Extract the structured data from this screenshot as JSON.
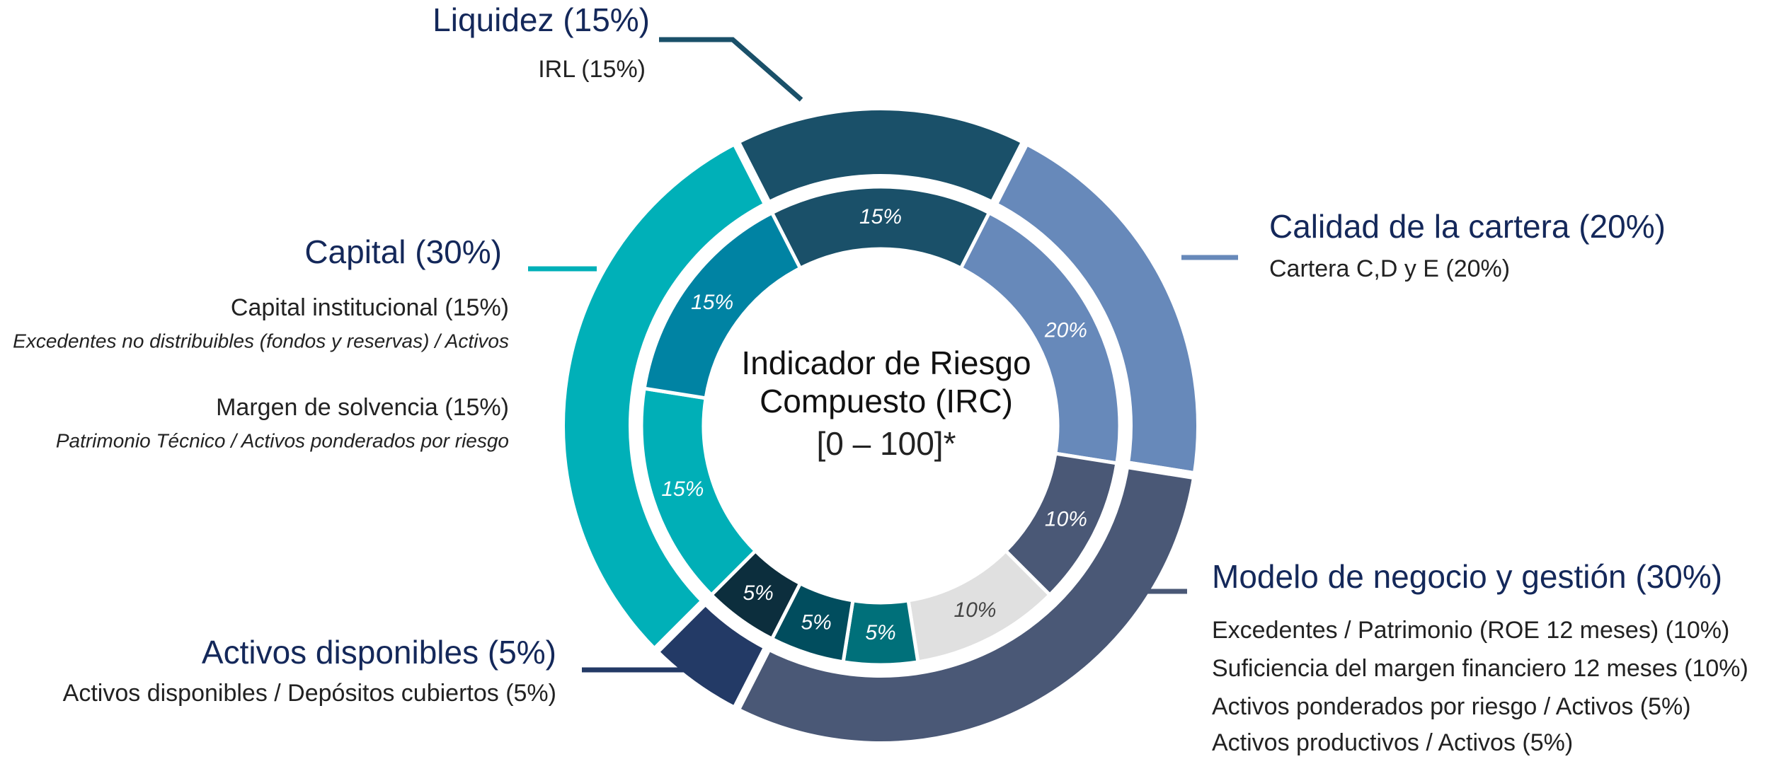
{
  "chart_data": {
    "type": "sunburst",
    "center_text": [
      "Indicador de Riesgo",
      "Compuesto (IRC)"
    ],
    "center_note": "[0 – 100]*",
    "outer": {
      "labels": [
        "Liquidez (15%)",
        "Calidad de la cartera (20%)",
        "Modelo de negocio y gestión (30%)",
        "Activos disponibles (5%)",
        "Capital (30%)"
      ],
      "values": [
        15,
        20,
        30,
        5,
        30
      ],
      "colors": [
        "#1a5069",
        "#6789ba",
        "#4a5876",
        "#233a66",
        "#00b0b8"
      ]
    },
    "inner": {
      "labels": [
        "IRL (15%)",
        "Cartera C,D y E (20%)",
        "Excedentes / Patrimonio (ROE 12 meses) (10%)",
        "Suficiencia del margen financiero 12 meses (10%)",
        "Activos ponderados por riesgo / Activos (5%)",
        "Activos productivos / Activos (5%)",
        "Activos disponibles / Depósitos cubiertos (5%)",
        "Margen de solvencia (15%)",
        "Capital institucional (15%)"
      ],
      "descriptions": [
        null,
        null,
        null,
        null,
        null,
        null,
        null,
        "Patrimonio Técnico / Activos ponderados por riesgo",
        "Excedentes no distribuibles (fondos y reservas) / Activos"
      ],
      "values": [
        15,
        20,
        10,
        10,
        5,
        5,
        5,
        15,
        15
      ],
      "value_labels": [
        "15%",
        "20%",
        "10%",
        "10%",
        "5%",
        "5%",
        "5%",
        "15%",
        "15%"
      ],
      "colors": [
        "#1a5069",
        "#6789ba",
        "#4a5876",
        "#e0e0e0",
        "#00707a",
        "#014d5e",
        "#0c2e3d",
        "#00afb7",
        "#0083a3"
      ]
    }
  }
}
